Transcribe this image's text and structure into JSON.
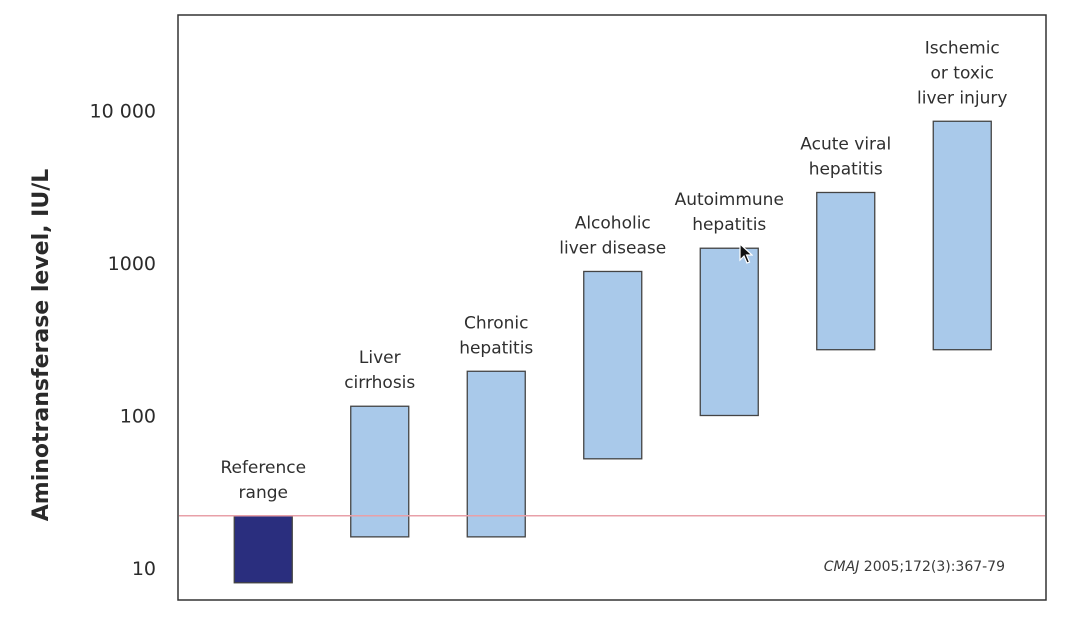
{
  "chart_data": {
    "type": "bar",
    "yscale": "log",
    "ylabel": "Aminotransferase level, IU/L",
    "ylim": [
      7.5,
      20000
    ],
    "yticks": [
      {
        "value": 10,
        "label": "10"
      },
      {
        "value": 100,
        "label": "100"
      },
      {
        "value": 1000,
        "label": "1000"
      },
      {
        "value": 10000,
        "label": "10 000"
      }
    ],
    "reference_line": 22,
    "series": [
      {
        "values": [
          {
            "category": [
              "Reference",
              "range"
            ],
            "low": 8,
            "high": 22,
            "color": "#2a2e7e"
          },
          {
            "category": [
              "Liver",
              "cirrhosis"
            ],
            "low": 16,
            "high": 115,
            "color": "#a9c9ea"
          },
          {
            "category": [
              "Chronic",
              "hepatitis"
            ],
            "low": 16,
            "high": 195,
            "color": "#a9c9ea"
          },
          {
            "category": [
              "Alcoholic",
              "liver disease"
            ],
            "low": 52,
            "high": 880,
            "color": "#a9c9ea"
          },
          {
            "category": [
              "Autoimmune",
              "hepatitis"
            ],
            "low": 100,
            "high": 1250,
            "color": "#a9c9ea"
          },
          {
            "category": [
              "Acute viral",
              "hepatitis"
            ],
            "low": 270,
            "high": 2900,
            "color": "#a9c9ea"
          },
          {
            "category": [
              "Ischemic",
              "or toxic",
              "liver injury"
            ],
            "low": 270,
            "high": 8500,
            "color": "#a9c9ea"
          }
        ]
      }
    ],
    "annotation": {
      "italic": "CMAJ",
      "rest": " 2005;172(3):367-79"
    },
    "grid": false,
    "colors": {
      "bar_fill": "#a9c9ea",
      "reference_fill": "#2a2e7e",
      "reference_line": "#e8a0a8",
      "frame": "#333333"
    }
  },
  "cursor": {
    "icon": "mouse-pointer-icon"
  }
}
